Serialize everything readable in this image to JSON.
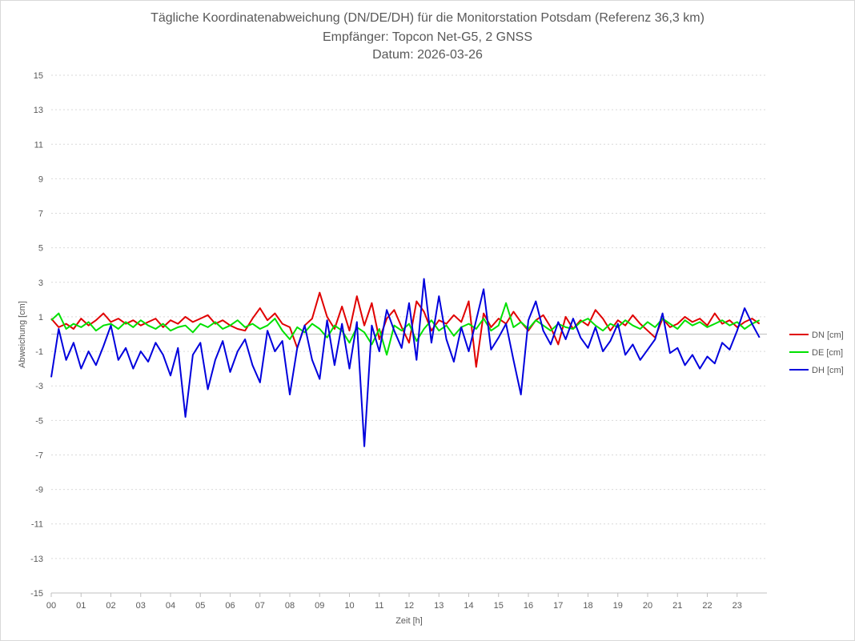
{
  "chart_data": {
    "type": "line",
    "title": "Tägliche Koordinatenabweichung (DN/DE/DH) für die Monitorstation Potsdam (Referenz 36,3 km)",
    "subtitle": "Empfänger: Topcon Net-G5, 2 GNSS",
    "date": "Datum: 2026-03-26",
    "xlabel": "Zeit [h]",
    "ylabel": "Abweichung [cm]",
    "xlim": [
      0,
      24
    ],
    "ylim": [
      -15,
      15
    ],
    "x_ticks": [
      "00",
      "01",
      "02",
      "03",
      "04",
      "05",
      "06",
      "07",
      "08",
      "09",
      "10",
      "11",
      "12",
      "13",
      "14",
      "15",
      "16",
      "17",
      "18",
      "19",
      "20",
      "21",
      "22",
      "23"
    ],
    "y_ticks": [
      "15",
      "13",
      "11",
      "9",
      "7",
      "5",
      "3",
      "1",
      "-1",
      "-3",
      "-5",
      "-7",
      "-9",
      "-11",
      "-13",
      "-15"
    ],
    "grid": true,
    "legend_position": "right",
    "x": [
      0.0,
      0.25,
      0.5,
      0.75,
      1.0,
      1.25,
      1.5,
      1.75,
      2.0,
      2.25,
      2.5,
      2.75,
      3.0,
      3.25,
      3.5,
      3.75,
      4.0,
      4.25,
      4.5,
      4.75,
      5.0,
      5.25,
      5.5,
      5.75,
      6.0,
      6.25,
      6.5,
      6.75,
      7.0,
      7.25,
      7.5,
      7.75,
      8.0,
      8.25,
      8.5,
      8.75,
      9.0,
      9.25,
      9.5,
      9.75,
      10.0,
      10.25,
      10.5,
      10.75,
      11.0,
      11.25,
      11.5,
      11.75,
      12.0,
      12.25,
      12.5,
      12.75,
      13.0,
      13.25,
      13.5,
      13.75,
      14.0,
      14.25,
      14.5,
      14.75,
      15.0,
      15.25,
      15.5,
      15.75,
      16.0,
      16.25,
      16.5,
      16.75,
      17.0,
      17.25,
      17.5,
      17.75,
      18.0,
      18.25,
      18.5,
      18.75,
      19.0,
      19.25,
      19.5,
      19.75,
      20.0,
      20.25,
      20.5,
      20.75,
      21.0,
      21.25,
      21.5,
      21.75,
      22.0,
      22.25,
      22.5,
      22.75,
      23.0,
      23.25,
      23.5,
      23.75
    ],
    "series": [
      {
        "name": "DN [cm]",
        "color": "#e00000",
        "values": [
          0.9,
          0.4,
          0.6,
          0.3,
          0.9,
          0.5,
          0.8,
          1.2,
          0.7,
          0.9,
          0.6,
          0.8,
          0.5,
          0.7,
          0.9,
          0.4,
          0.8,
          0.6,
          1.0,
          0.7,
          0.9,
          1.1,
          0.6,
          0.8,
          0.5,
          0.3,
          0.2,
          0.9,
          1.5,
          0.8,
          1.2,
          0.6,
          0.4,
          -0.8,
          0.5,
          0.9,
          2.4,
          1.0,
          0.3,
          1.6,
          0.2,
          2.2,
          0.5,
          1.8,
          -0.3,
          0.9,
          1.4,
          0.4,
          -0.5,
          1.9,
          1.3,
          0.2,
          0.8,
          0.6,
          1.1,
          0.7,
          1.9,
          -1.9,
          1.2,
          0.4,
          0.9,
          0.6,
          1.3,
          0.7,
          0.2,
          0.8,
          1.1,
          0.4,
          -0.6,
          1.0,
          0.3,
          0.8,
          0.5,
          1.4,
          0.9,
          0.2,
          0.8,
          0.5,
          1.1,
          0.6,
          0.2,
          -0.2,
          0.9,
          0.4,
          0.6,
          1.0,
          0.7,
          0.9,
          0.5,
          1.2,
          0.6,
          0.8,
          0.4,
          0.7,
          0.9,
          0.6
        ]
      },
      {
        "name": "DE [cm]",
        "color": "#00e000",
        "values": [
          0.8,
          1.2,
          0.3,
          0.6,
          0.4,
          0.7,
          0.2,
          0.5,
          0.6,
          0.3,
          0.7,
          0.4,
          0.8,
          0.5,
          0.3,
          0.6,
          0.2,
          0.4,
          0.5,
          0.1,
          0.6,
          0.4,
          0.7,
          0.3,
          0.5,
          0.8,
          0.4,
          0.6,
          0.3,
          0.5,
          0.9,
          0.2,
          -0.3,
          0.4,
          0.1,
          0.6,
          0.3,
          -0.2,
          0.5,
          0.2,
          -0.5,
          0.4,
          0.1,
          -0.6,
          0.3,
          -1.2,
          0.5,
          0.2,
          0.6,
          -0.4,
          0.3,
          0.8,
          0.2,
          0.5,
          -0.1,
          0.4,
          0.6,
          0.3,
          0.9,
          0.2,
          0.5,
          1.8,
          0.4,
          0.7,
          0.3,
          0.8,
          0.5,
          0.2,
          0.6,
          0.4,
          0.3,
          0.7,
          0.9,
          0.5,
          0.2,
          0.6,
          0.4,
          0.8,
          0.5,
          0.3,
          0.7,
          0.4,
          0.9,
          0.6,
          0.3,
          0.8,
          0.5,
          0.7,
          0.4,
          0.6,
          0.8,
          0.5,
          0.7,
          0.3,
          0.6,
          0.8
        ]
      },
      {
        "name": "DH [cm]",
        "color": "#0000dd",
        "values": [
          -2.5,
          0.3,
          -1.5,
          -0.5,
          -2.0,
          -1.0,
          -1.8,
          -0.7,
          0.5,
          -1.5,
          -0.8,
          -2.0,
          -1.0,
          -1.6,
          -0.5,
          -1.2,
          -2.4,
          -0.8,
          -4.8,
          -1.2,
          -0.5,
          -3.2,
          -1.5,
          -0.4,
          -2.2,
          -1.0,
          -0.3,
          -1.8,
          -2.8,
          0.2,
          -1.0,
          -0.4,
          -3.5,
          -0.8,
          0.5,
          -1.5,
          -2.6,
          0.8,
          -1.8,
          0.6,
          -2.0,
          0.7,
          -6.5,
          0.5,
          -1.0,
          1.4,
          0.2,
          -0.8,
          1.8,
          -1.5,
          3.2,
          -0.5,
          2.2,
          -0.3,
          -1.6,
          0.4,
          -1.0,
          0.8,
          2.6,
          -0.9,
          -0.2,
          0.6,
          -1.5,
          -3.5,
          0.8,
          1.9,
          0.2,
          -0.6,
          0.7,
          -0.3,
          0.9,
          -0.2,
          -0.8,
          0.4,
          -1.0,
          -0.4,
          0.6,
          -1.2,
          -0.6,
          -1.5,
          -0.9,
          -0.3,
          1.2,
          -1.1,
          -0.8,
          -1.8,
          -1.2,
          -2.0,
          -1.3,
          -1.7,
          -0.5,
          -0.9,
          0.2,
          1.5,
          0.6,
          -0.2
        ]
      }
    ]
  }
}
